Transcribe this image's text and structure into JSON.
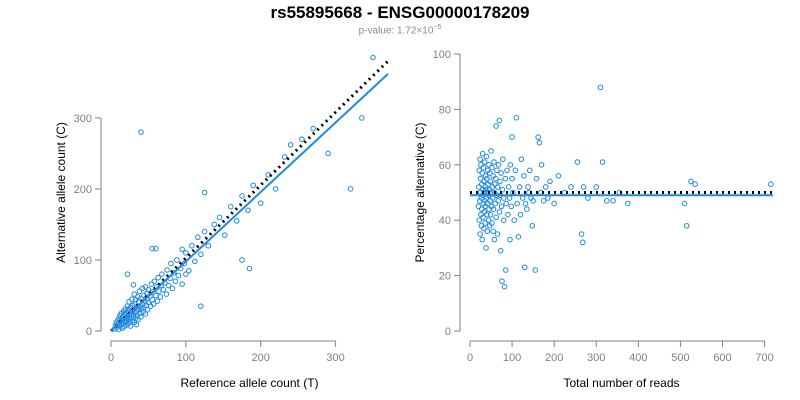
{
  "header": {
    "title": "rs55895668 - ENSG00000178209",
    "pvalue_prefix": "p-value: 1.72×10",
    "pvalue_exponent": "−5"
  },
  "colors": {
    "points": "#1f8ae0",
    "fit_line": "#1f8ae0",
    "reference_line": "#000000",
    "axis": "#808080"
  },
  "chart_data": [
    {
      "type": "scatter",
      "xlabel": "Reference allele count (T)",
      "ylabel": "Alternative allele count (C)",
      "xlim": [
        0,
        370
      ],
      "ylim": [
        0,
        390
      ],
      "xticks": [
        0,
        100,
        200,
        300
      ],
      "yticks": [
        0,
        100,
        200,
        300
      ],
      "fit_line": {
        "style": "solid",
        "points": [
          [
            0,
            0
          ],
          [
            370,
            362
          ]
        ]
      },
      "reference_line": {
        "style": "dotted",
        "points": [
          [
            0,
            0
          ],
          [
            370,
            380
          ]
        ]
      },
      "points": [
        [
          5,
          3
        ],
        [
          6,
          8
        ],
        [
          7,
          12
        ],
        [
          8,
          5
        ],
        [
          9,
          15
        ],
        [
          10,
          10
        ],
        [
          10,
          2
        ],
        [
          11,
          18
        ],
        [
          12,
          7
        ],
        [
          12,
          22
        ],
        [
          13,
          14
        ],
        [
          14,
          9
        ],
        [
          14,
          25
        ],
        [
          15,
          16
        ],
        [
          15,
          4
        ],
        [
          16,
          20
        ],
        [
          16,
          11
        ],
        [
          17,
          28
        ],
        [
          17,
          6
        ],
        [
          18,
          15
        ],
        [
          18,
          24
        ],
        [
          19,
          12
        ],
        [
          19,
          31
        ],
        [
          20,
          18
        ],
        [
          20,
          8
        ],
        [
          21,
          26
        ],
        [
          21,
          14
        ],
        [
          22,
          35
        ],
        [
          22,
          20
        ],
        [
          23,
          10
        ],
        [
          23,
          30
        ],
        [
          24,
          17
        ],
        [
          24,
          41
        ],
        [
          25,
          22
        ],
        [
          25,
          13
        ],
        [
          26,
          33
        ],
        [
          26,
          7
        ],
        [
          27,
          19
        ],
        [
          27,
          28
        ],
        [
          28,
          45
        ],
        [
          28,
          24
        ],
        [
          29,
          15
        ],
        [
          29,
          36
        ],
        [
          30,
          21
        ],
        [
          30,
          30
        ],
        [
          31,
          12
        ],
        [
          31,
          52
        ],
        [
          32,
          26
        ],
        [
          32,
          38
        ],
        [
          33,
          18
        ],
        [
          33,
          44
        ],
        [
          34,
          28
        ],
        [
          34,
          9
        ],
        [
          35,
          34
        ],
        [
          35,
          22
        ],
        [
          36,
          48
        ],
        [
          36,
          16
        ],
        [
          37,
          30
        ],
        [
          37,
          41
        ],
        [
          38,
          25
        ],
        [
          38,
          56
        ],
        [
          39,
          35
        ],
        [
          40,
          20
        ],
        [
          40,
          46
        ],
        [
          41,
          31
        ],
        [
          42,
          60
        ],
        [
          42,
          38
        ],
        [
          43,
          27
        ],
        [
          44,
          50
        ],
        [
          44,
          33
        ],
        [
          45,
          42
        ],
        [
          46,
          24
        ],
        [
          46,
          62
        ],
        [
          47,
          36
        ],
        [
          48,
          53
        ],
        [
          48,
          45
        ],
        [
          49,
          30
        ],
        [
          50,
          58
        ],
        [
          50,
          40
        ],
        [
          52,
          49
        ],
        [
          53,
          35
        ],
        [
          54,
          66
        ],
        [
          55,
          44
        ],
        [
          56,
          55
        ],
        [
          57,
          38
        ],
        [
          58,
          70
        ],
        [
          60,
          50
        ],
        [
          61,
          62
        ],
        [
          62,
          42
        ],
        [
          63,
          75
        ],
        [
          64,
          56
        ],
        [
          66,
          48
        ],
        [
          67,
          64
        ],
        [
          68,
          80
        ],
        [
          70,
          58
        ],
        [
          72,
          68
        ],
        [
          74,
          52
        ],
        [
          75,
          86
        ],
        [
          77,
          64
        ],
        [
          79,
          74
        ],
        [
          80,
          95
        ],
        [
          82,
          60
        ],
        [
          84,
          82
        ],
        [
          86,
          70
        ],
        [
          88,
          100
        ],
        [
          90,
          78
        ],
        [
          93,
          88
        ],
        [
          95,
          66
        ],
        [
          98,
          95
        ],
        [
          100,
          110
        ],
        [
          104,
          85
        ],
        [
          108,
          120
        ],
        [
          112,
          98
        ],
        [
          116,
          132
        ],
        [
          120,
          108
        ],
        [
          125,
          140
        ],
        [
          130,
          120
        ],
        [
          138,
          150
        ],
        [
          145,
          160
        ],
        [
          152,
          135
        ],
        [
          160,
          175
        ],
        [
          168,
          155
        ],
        [
          175,
          190
        ],
        [
          183,
          170
        ],
        [
          190,
          205
        ],
        [
          200,
          180
        ],
        [
          210,
          220
        ],
        [
          220,
          200
        ],
        [
          232,
          245
        ],
        [
          240,
          262
        ],
        [
          255,
          270
        ],
        [
          270,
          285
        ],
        [
          290,
          250
        ],
        [
          320,
          200
        ],
        [
          335,
          300
        ],
        [
          350,
          385
        ],
        [
          40,
          280
        ],
        [
          100,
          80
        ],
        [
          120,
          35
        ],
        [
          175,
          100
        ],
        [
          185,
          88
        ],
        [
          125,
          195
        ],
        [
          95,
          115
        ],
        [
          60,
          116
        ],
        [
          55,
          116
        ],
        [
          22,
          80
        ],
        [
          30,
          65
        ]
      ]
    },
    {
      "type": "scatter",
      "xlabel": "Total number of reads",
      "ylabel": "Percentage alternative (C)",
      "xlim": [
        0,
        720
      ],
      "ylim": [
        0,
        100
      ],
      "xticks": [
        0,
        100,
        200,
        300,
        400,
        500,
        600,
        700
      ],
      "yticks": [
        0,
        20,
        40,
        60,
        80,
        100
      ],
      "fit_line": {
        "style": "solid",
        "points": [
          [
            0,
            49
          ],
          [
            720,
            49
          ]
        ]
      },
      "reference_line": {
        "style": "dotted",
        "points": [
          [
            0,
            50
          ],
          [
            720,
            50
          ]
        ]
      },
      "points": [
        [
          20,
          45
        ],
        [
          21,
          52
        ],
        [
          22,
          58
        ],
        [
          22,
          40
        ],
        [
          23,
          47
        ],
        [
          24,
          62
        ],
        [
          24,
          35
        ],
        [
          25,
          50
        ],
        [
          25,
          55
        ],
        [
          26,
          42
        ],
        [
          26,
          60
        ],
        [
          27,
          48
        ],
        [
          27,
          38
        ],
        [
          28,
          53
        ],
        [
          28,
          44
        ],
        [
          29,
          57
        ],
        [
          29,
          33
        ],
        [
          30,
          49
        ],
        [
          30,
          64
        ],
        [
          31,
          41
        ],
        [
          31,
          51
        ],
        [
          32,
          46
        ],
        [
          32,
          59
        ],
        [
          33,
          37
        ],
        [
          33,
          54
        ],
        [
          34,
          50
        ],
        [
          34,
          43
        ],
        [
          35,
          61
        ],
        [
          35,
          47
        ],
        [
          36,
          52
        ],
        [
          36,
          39
        ],
        [
          37,
          56
        ],
        [
          37,
          45
        ],
        [
          38,
          30
        ],
        [
          38,
          51
        ],
        [
          39,
          48
        ],
        [
          39,
          63
        ],
        [
          40,
          42
        ],
        [
          40,
          55
        ],
        [
          41,
          50
        ],
        [
          41,
          36
        ],
        [
          42,
          58
        ],
        [
          42,
          46
        ],
        [
          43,
          53
        ],
        [
          44,
          40
        ],
        [
          44,
          49
        ],
        [
          45,
          60
        ],
        [
          45,
          44
        ],
        [
          46,
          51
        ],
        [
          47,
          38
        ],
        [
          47,
          57
        ],
        [
          48,
          47
        ],
        [
          48,
          54
        ],
        [
          49,
          42
        ],
        [
          50,
          65
        ],
        [
          50,
          50
        ],
        [
          51,
          45
        ],
        [
          52,
          59
        ],
        [
          52,
          39
        ],
        [
          53,
          52
        ],
        [
          54,
          48
        ],
        [
          55,
          36
        ],
        [
          55,
          56
        ],
        [
          56,
          44
        ],
        [
          57,
          61
        ],
        [
          58,
          50
        ],
        [
          58,
          33
        ],
        [
          59,
          53
        ],
        [
          60,
          46
        ],
        [
          61,
          55
        ],
        [
          62,
          41
        ],
        [
          62,
          74
        ],
        [
          63,
          49
        ],
        [
          64,
          58
        ],
        [
          65,
          35
        ],
        [
          66,
          52
        ],
        [
          67,
          47
        ],
        [
          68,
          60
        ],
        [
          70,
          43
        ],
        [
          70,
          76
        ],
        [
          71,
          54
        ],
        [
          72,
          49
        ],
        [
          73,
          29
        ],
        [
          74,
          57
        ],
        [
          75,
          45
        ],
        [
          76,
          18
        ],
        [
          77,
          51
        ],
        [
          78,
          62
        ],
        [
          80,
          40
        ],
        [
          80,
          48
        ],
        [
          82,
          16
        ],
        [
          84,
          55
        ],
        [
          85,
          22
        ],
        [
          86,
          46
        ],
        [
          88,
          58
        ],
        [
          90,
          42
        ],
        [
          92,
          52
        ],
        [
          94,
          48
        ],
        [
          95,
          33
        ],
        [
          96,
          60
        ],
        [
          98,
          45
        ],
        [
          100,
          55
        ],
        [
          100,
          70
        ],
        [
          102,
          50
        ],
        [
          105,
          40
        ],
        [
          108,
          58
        ],
        [
          110,
          77
        ],
        [
          112,
          46
        ],
        [
          115,
          34
        ],
        [
          118,
          52
        ],
        [
          120,
          42
        ],
        [
          122,
          62
        ],
        [
          125,
          48
        ],
        [
          128,
          56
        ],
        [
          130,
          23
        ],
        [
          132,
          46
        ],
        [
          135,
          44
        ],
        [
          138,
          52
        ],
        [
          140,
          50
        ],
        [
          142,
          58
        ],
        [
          145,
          48
        ],
        [
          148,
          38
        ],
        [
          150,
          47
        ],
        [
          155,
          22
        ],
        [
          158,
          55
        ],
        [
          162,
          70
        ],
        [
          165,
          68
        ],
        [
          168,
          50
        ],
        [
          170,
          60
        ],
        [
          175,
          47
        ],
        [
          180,
          52
        ],
        [
          185,
          48
        ],
        [
          190,
          54
        ],
        [
          200,
          46
        ],
        [
          210,
          56
        ],
        [
          225,
          50
        ],
        [
          240,
          52
        ],
        [
          255,
          61
        ],
        [
          265,
          35
        ],
        [
          268,
          32
        ],
        [
          270,
          52
        ],
        [
          280,
          48
        ],
        [
          300,
          52
        ],
        [
          310,
          88
        ],
        [
          315,
          61
        ],
        [
          325,
          47
        ],
        [
          340,
          47
        ],
        [
          355,
          50
        ],
        [
          375,
          46
        ],
        [
          510,
          46
        ],
        [
          515,
          38
        ],
        [
          525,
          54
        ],
        [
          535,
          53
        ],
        [
          715,
          53
        ]
      ]
    }
  ]
}
